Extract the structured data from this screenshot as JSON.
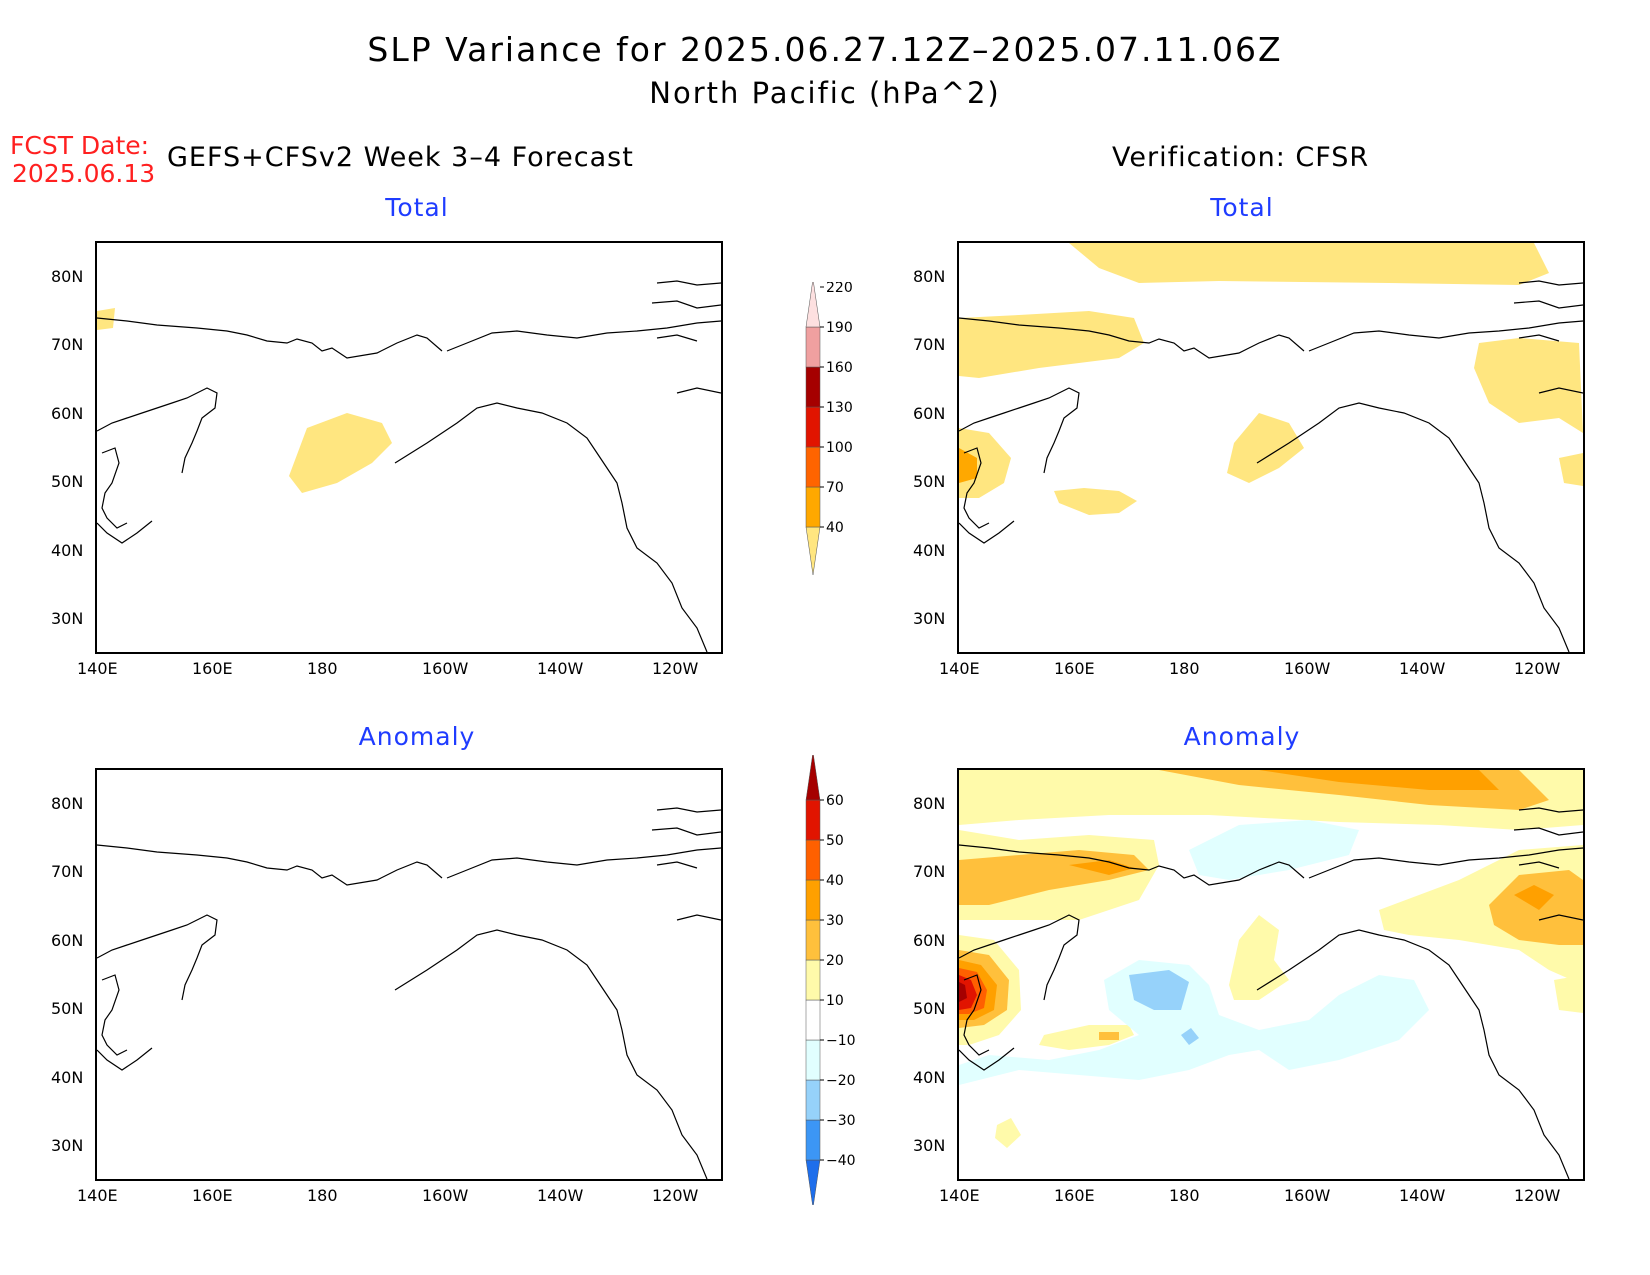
{
  "title_line1": "SLP Variance for 2025.06.27.12Z–2025.07.11.06Z",
  "title_line2": "North Pacific (hPa^2)",
  "fcst_label": "FCST Date:",
  "fcst_date": "2025.06.13",
  "left_column_title": "GEFS+CFSv2 Week 3–4 Forecast",
  "right_column_title": "Verification: CFSR",
  "panels": {
    "total_left": "Total",
    "total_right": "Total",
    "anom_left": "Anomaly",
    "anom_right": "Anomaly"
  },
  "lat_labels": [
    "80N",
    "70N",
    "60N",
    "50N",
    "40N",
    "30N"
  ],
  "lon_labels": [
    "140E",
    "160E",
    "180",
    "160W",
    "140W",
    "120W"
  ],
  "total_colorbar": {
    "levels": [
      "40",
      "70",
      "100",
      "130",
      "160",
      "190",
      "220"
    ],
    "colors": [
      "#ffe680",
      "#ffa800",
      "#ff6400",
      "#e11400",
      "#a50000",
      "#f0a0a0",
      "#fde0e0"
    ]
  },
  "anomaly_colorbar": {
    "levels": [
      "−40",
      "−30",
      "−20",
      "−10",
      "10",
      "20",
      "30",
      "40",
      "50",
      "60"
    ],
    "colors": [
      "#1e6eeb",
      "#3c96f5",
      "#96d2fa",
      "#e1ffff",
      "#ffffff",
      "#fffaaa",
      "#ffc03c",
      "#ffa000",
      "#ff6000",
      "#e11400",
      "#a50000"
    ]
  }
}
